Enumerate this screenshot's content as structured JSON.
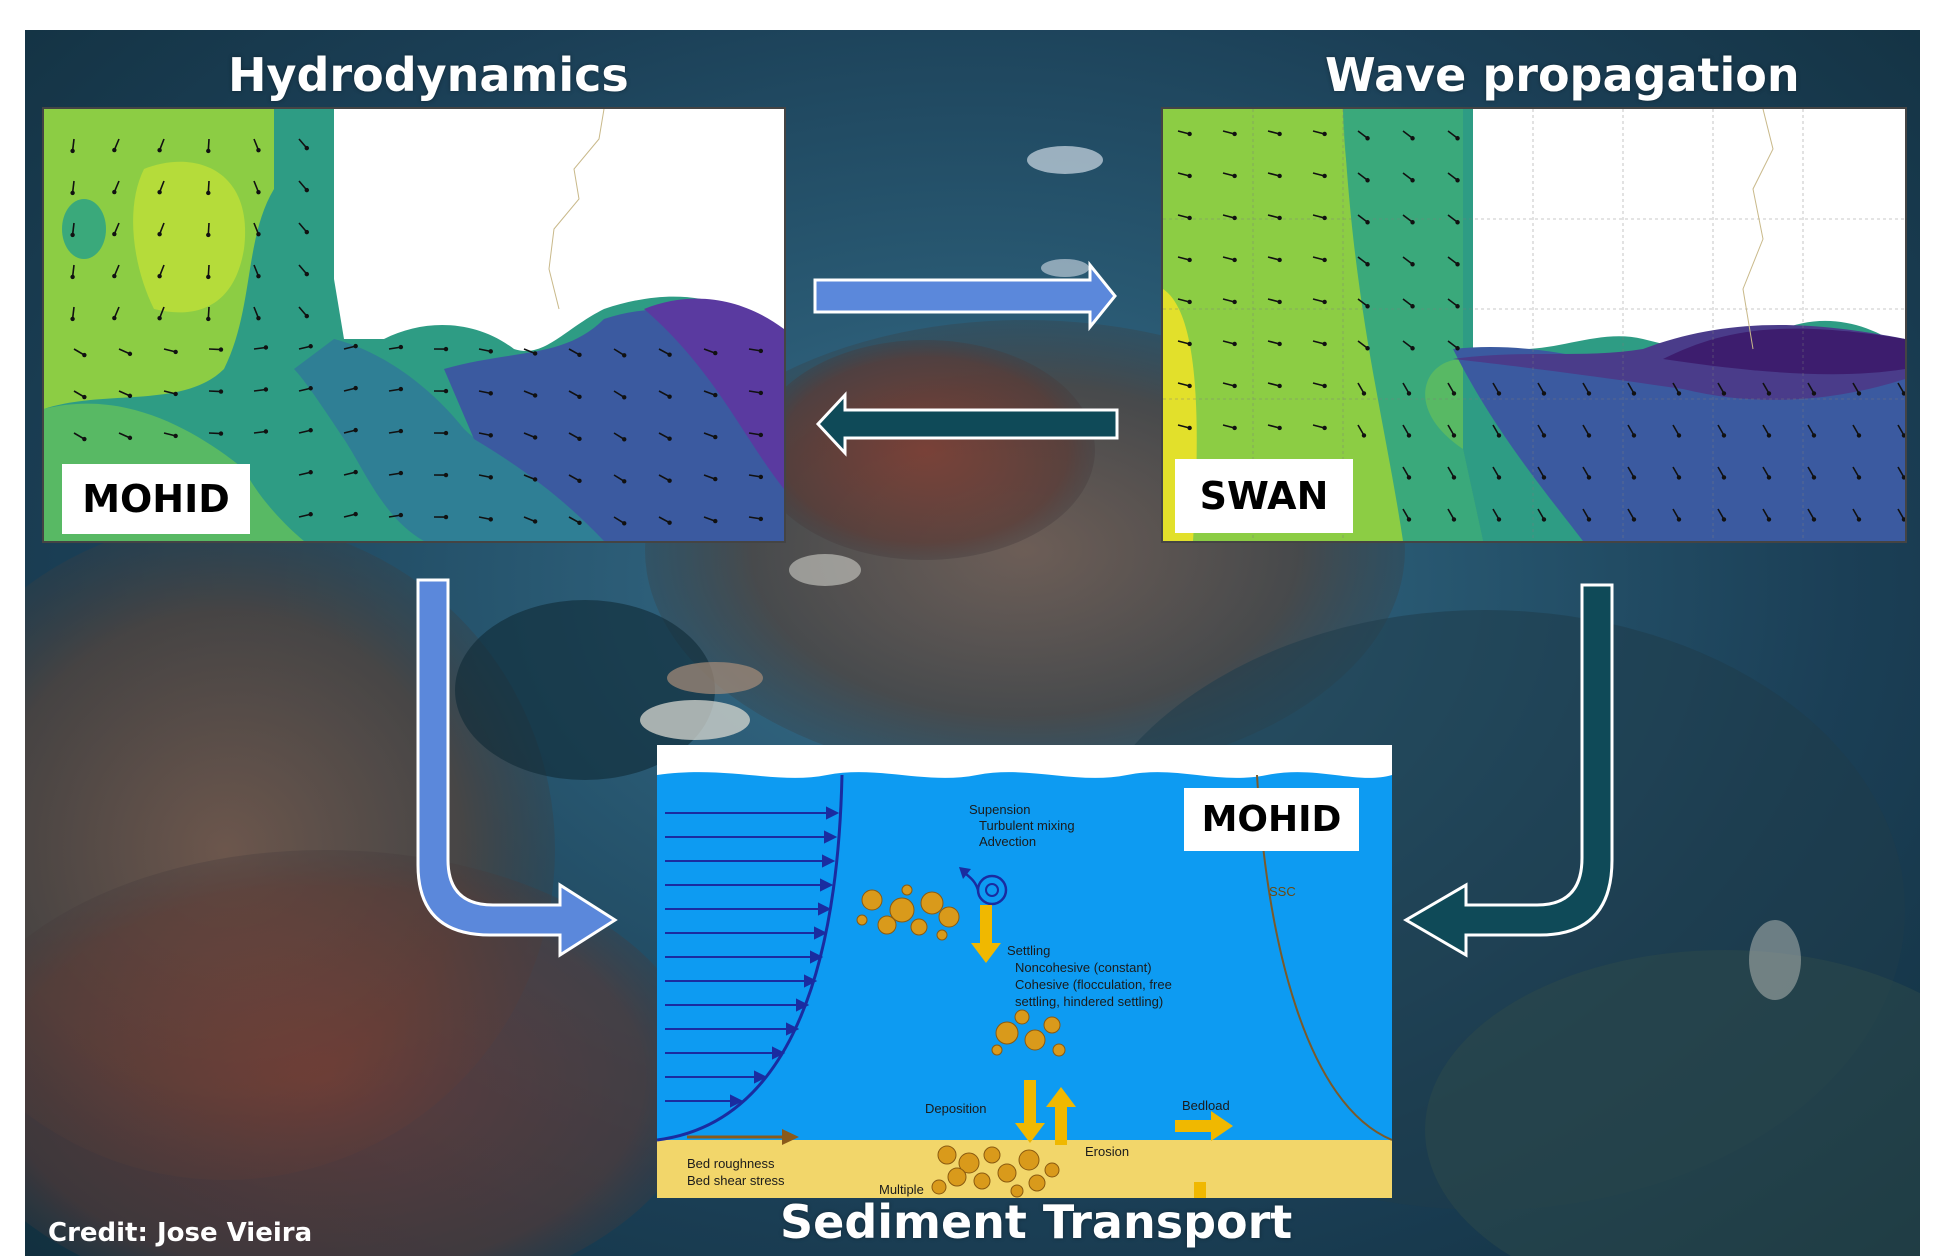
{
  "titles": {
    "left": "Hydrodynamics",
    "right": "Wave propagation",
    "bottom": "Sediment Transport"
  },
  "panels": {
    "hydro_label": "MOHID",
    "wave_label": "SWAN",
    "sediment_label": "MOHID"
  },
  "sediment_diagram": {
    "suspension": "Supension",
    "turbulent_mixing": "Turbulent mixing",
    "advection": "Advection",
    "settling": "Settling",
    "noncohesive": "Noncohesive (constant)",
    "cohesive": "Cohesive (flocculation, free",
    "cohesive2": "settling, hindered  settling)",
    "deposition": "Deposition",
    "erosion": "Erosion",
    "bedload": "Bedload",
    "ssc": "SSC",
    "bed_roughness": "Bed roughness",
    "bed_shear": "Bed shear stress",
    "multiple": "Multiple"
  },
  "credit": "Credit: Jose Vieira",
  "colors": {
    "arrow_blue": "#4f7fd6",
    "arrow_teal": "#0f4a58",
    "water": "#0d9bf2",
    "sediment_bed": "#f2d66a",
    "grain": "#d99a1b"
  },
  "icons": [
    "arrow-right-icon",
    "arrow-left-icon",
    "curved-arrow-down-right-icon",
    "curved-arrow-down-left-icon"
  ]
}
